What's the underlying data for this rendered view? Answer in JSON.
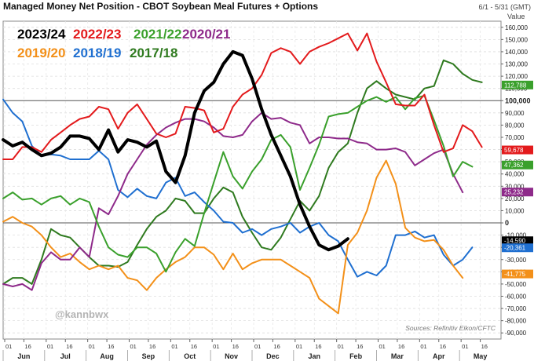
{
  "chart_data": {
    "type": "line",
    "title": "Managed Money Net Position - CBOT Soybean Meal Futures + Options",
    "date_range": "6/1 - 5/31 (GMT)",
    "ylabel": "Value",
    "ylim": [
      -95000,
      165000
    ],
    "y_ticks": [
      160000,
      150000,
      140000,
      130000,
      120000,
      110000,
      100000,
      90000,
      80000,
      70000,
      60000,
      50000,
      40000,
      30000,
      20000,
      10000,
      0,
      -10000,
      -20000,
      -30000,
      -40000,
      -50000,
      -60000,
      -70000,
      -80000,
      -90000
    ],
    "y_tick_labels": [
      "160,000",
      "150,000",
      "140,000",
      "130,000",
      "120,000",
      "110,000",
      "100,000",
      "90,000",
      "80,000",
      "70,000",
      "60,000",
      "50,000",
      "40,000",
      "30,000",
      "20,000",
      "10,000",
      "0",
      "-10,000",
      "-20,000",
      "-30,000",
      "-40,000",
      "-50,000",
      "-60,000",
      "-70,000",
      "-80,000",
      "-90,000"
    ],
    "major_y_ticks": [
      100000,
      0
    ],
    "months": [
      "Jun",
      "Jul",
      "Aug",
      "Sep",
      "Oct",
      "Nov",
      "Dec",
      "Jan",
      "Feb",
      "Mar",
      "Apr",
      "May"
    ],
    "day_ticks": [
      "01",
      "16"
    ],
    "x_unit": "week",
    "source": "Sources: Refinitiv Eikon/CFTC",
    "watermark": "@kannbwx",
    "series": [
      {
        "name": "2023/24",
        "color": "#000000",
        "width": 4,
        "values": [
          68000,
          63000,
          66000,
          60000,
          55000,
          57000,
          62000,
          71000,
          71000,
          69000,
          60000,
          76000,
          58000,
          68000,
          66000,
          62000,
          67000,
          42000,
          33000,
          55000,
          90000,
          108000,
          115000,
          130000,
          140000,
          137000,
          118000,
          93000,
          72000,
          55000,
          38000,
          15000,
          -3000,
          -18000,
          -22000,
          -19000,
          -13000
        ]
      },
      {
        "name": "2022/23",
        "color": "#e31a1c",
        "width": 2,
        "values": [
          52000,
          52000,
          62000,
          62000,
          58000,
          68000,
          74000,
          80000,
          85000,
          87000,
          95000,
          93000,
          77000,
          90000,
          97000,
          85000,
          73000,
          70000,
          73000,
          95000,
          94000,
          92000,
          74000,
          77000,
          95000,
          105000,
          110000,
          121000,
          139000,
          143000,
          140000,
          130000,
          140000,
          144000,
          147000,
          151000,
          155000,
          141000,
          155000,
          132000,
          115000,
          97000,
          96000,
          96000,
          105000,
          80000,
          58000,
          61000,
          80000,
          75000,
          62000
        ]
      },
      {
        "name": "2021/22",
        "color": "#3aa02c",
        "width": 2,
        "values": [
          20000,
          25000,
          19000,
          20000,
          15000,
          20000,
          22000,
          15000,
          20000,
          17000,
          -3000,
          -20000,
          -26000,
          -28000,
          -20000,
          -20000,
          -25000,
          -40000,
          -24000,
          -13000,
          -19000,
          8000,
          33000,
          58000,
          38000,
          28000,
          42000,
          52000,
          68000,
          72000,
          62000,
          27000,
          45000,
          64000,
          87000,
          89000,
          90000,
          95000,
          100000,
          103000,
          99000,
          103000,
          93000,
          102000,
          104000,
          84000,
          63000,
          38000,
          50000,
          46000
        ]
      },
      {
        "name": "2020/21",
        "color": "#8e2a8a",
        "width": 2,
        "values": [
          -50000,
          -52000,
          -50000,
          -55000,
          -33000,
          -24000,
          -30000,
          -30000,
          -20000,
          -28000,
          12000,
          7000,
          22000,
          40000,
          52000,
          64000,
          72000,
          78000,
          82000,
          85000,
          85000,
          83000,
          78000,
          71000,
          70000,
          72000,
          83000,
          90000,
          85000,
          86000,
          82000,
          80000,
          65000,
          70000,
          70000,
          69000,
          69000,
          66000,
          65000,
          60000,
          60000,
          61000,
          58000,
          47000,
          52000,
          57000,
          60000,
          40000,
          25000
        ]
      },
      {
        "name": "2019/20",
        "color": "#f39019",
        "width": 2,
        "values": [
          1000,
          5000,
          0,
          -3000,
          -10000,
          -20000,
          -28000,
          -25000,
          -32000,
          -38000,
          -35000,
          -38000,
          -35000,
          -45000,
          -47000,
          -55000,
          -45000,
          -38000,
          -32000,
          -28000,
          -20000,
          -20000,
          -26000,
          -38000,
          -25000,
          -38000,
          -33000,
          -30000,
          -30000,
          -30000,
          -35000,
          -40000,
          -45000,
          -62000,
          -68000,
          -74000,
          -18000,
          -8000,
          10000,
          37000,
          51000,
          32000,
          -4000,
          -12000,
          -15000,
          -14000,
          -22000,
          -35000,
          -45000
        ]
      },
      {
        "name": "2018/19",
        "color": "#1f6fd0",
        "width": 2,
        "values": [
          101000,
          90000,
          83000,
          63000,
          55000,
          56000,
          55000,
          52000,
          52000,
          52000,
          59000,
          52000,
          27000,
          21000,
          28000,
          22000,
          20000,
          33000,
          37000,
          22000,
          25000,
          17000,
          10000,
          1000,
          0,
          -8000,
          -5000,
          -10000,
          -5000,
          -3000,
          0,
          -8000,
          -3000,
          0,
          -10000,
          -15000,
          -30000,
          -44000,
          -40000,
          -43000,
          -35000,
          -10000,
          -10000,
          -7000,
          -12000,
          -10000,
          -26000,
          -35000,
          -30000,
          -20000
        ]
      },
      {
        "name": "2017/18",
        "color": "#2f7a1f",
        "width": 2,
        "values": [
          -50000,
          -45000,
          -45000,
          -50000,
          -30000,
          -5000,
          -10000,
          -12000,
          -20000,
          -28000,
          -35000,
          -35000,
          -36000,
          -32000,
          -18000,
          -5000,
          5000,
          10000,
          20000,
          18000,
          8000,
          8000,
          20000,
          29000,
          25000,
          5000,
          -8000,
          -20000,
          -22000,
          -12000,
          3000,
          18000,
          10000,
          22000,
          45000,
          58000,
          65000,
          90000,
          110000,
          116000,
          110000,
          105000,
          103000,
          101000,
          110000,
          112000,
          133000,
          130000,
          122000,
          117000,
          115000
        ]
      }
    ],
    "last_value_tags": [
      {
        "label": "112,788",
        "value": 112788,
        "bg": "#3aa02c",
        "fg": "#ffffff"
      },
      {
        "label": "59,678",
        "value": 59678,
        "bg": "#e31a1c",
        "fg": "#ffffff"
      },
      {
        "label": "47,362",
        "value": 47362,
        "bg": "#3aa02c",
        "fg": "#ffffff"
      },
      {
        "label": "25,232",
        "value": 25232,
        "bg": "#8e2a8a",
        "fg": "#ffffff"
      },
      {
        "label": "-14,590",
        "value": -14590,
        "bg": "#000000",
        "fg": "#ffffff"
      },
      {
        "label": "-20,361",
        "value": -20361,
        "bg": "#1f6fd0",
        "fg": "#ffffff"
      },
      {
        "label": "-41,775",
        "value": -41775,
        "bg": "#f39019",
        "fg": "#ffffff"
      }
    ]
  }
}
